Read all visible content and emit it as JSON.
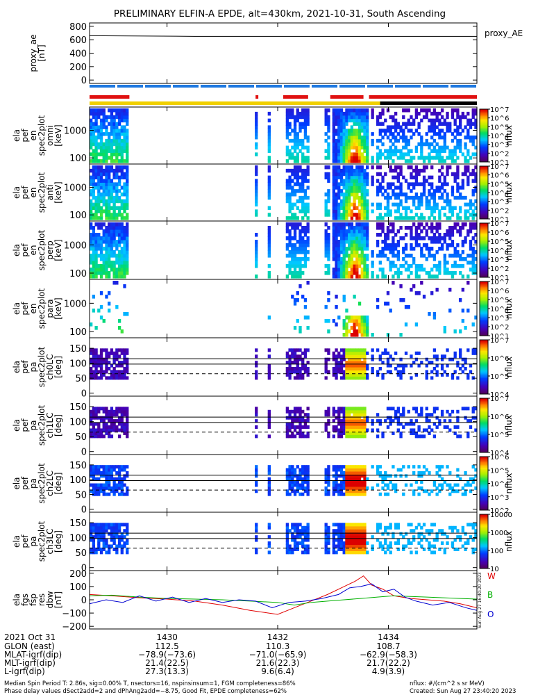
{
  "title": "PRELIMINARY ELFIN-A EPDE, alt=430km, 2021-10-31, South Ascending",
  "colors": {
    "red": "#e01010",
    "yellow": "#f0d000",
    "blue": "#1e78e0",
    "black": "#000000",
    "w_line": "#e00000",
    "b_line": "#00b000",
    "o_line": "#0000d0"
  },
  "chart_data": [
    {
      "id": "proxy_ae",
      "type": "line",
      "ylabel_lines": [
        "proxy_ae",
        "[nT]"
      ],
      "right_label": "proxy_AE",
      "ylim": [
        -50,
        850
      ],
      "yticks": [
        {
          "v": 800,
          "t": "800"
        },
        {
          "v": 600,
          "t": "600"
        },
        {
          "v": 400,
          "t": "400"
        },
        {
          "v": 200,
          "t": "200"
        },
        {
          "v": 0,
          "t": "0"
        }
      ],
      "x": [
        1428.6,
        1430.5,
        1435.6
      ],
      "y": [
        660,
        650,
        650
      ]
    },
    {
      "id": "status_bars",
      "type": "bar",
      "bars": [
        {
          "name": "spin",
          "color": "blue",
          "segments": [
            [
              1428.6,
              1435.6
            ]
          ],
          "dashed": true
        },
        {
          "name": "science",
          "color": "red",
          "segments": [
            [
              1428.6,
              1429.32
            ],
            [
              1431.6,
              1431.65
            ],
            [
              1432.1,
              1432.55
            ],
            [
              1432.95,
              1433.55
            ],
            [
              1433.65,
              1435.6
            ]
          ]
        },
        {
          "name": "fgm",
          "color": "yellow",
          "segments": [
            [
              1428.6,
              1433.85
            ]
          ]
        },
        {
          "name": "fgm_black",
          "color": "black",
          "segments": [
            [
              1433.85,
              1435.6
            ]
          ]
        }
      ]
    },
    {
      "id": "omni",
      "type": "heatmap",
      "ylabel_lines": [
        "ela",
        "pef",
        "en",
        "spec2plot",
        "omni",
        "[keV]"
      ],
      "yscale": "log",
      "ylim": [
        60,
        7000
      ],
      "yticks": [
        {
          "v": 1000,
          "t": "1000"
        },
        {
          "v": 100,
          "t": "100"
        }
      ],
      "zlabel": "nflux",
      "cbar_ticks": [
        {
          "v": 0,
          "t": "10^1"
        },
        {
          "v": 1,
          "t": "10^2"
        },
        {
          "v": 2,
          "t": "10^3"
        },
        {
          "v": 3,
          "t": "10^4"
        },
        {
          "v": 4,
          "t": "10^5"
        },
        {
          "v": 5,
          "t": "10^6"
        },
        {
          "v": 6,
          "t": "10^7"
        }
      ]
    },
    {
      "id": "perp",
      "type": "heatmap",
      "ylabel_lines": [
        "ela",
        "pef",
        "en",
        "spec2plot",
        "anti",
        "[keV]"
      ],
      "yscale": "log",
      "ylim": [
        60,
        7000
      ],
      "yticks": [
        {
          "v": 1000,
          "t": "1000"
        },
        {
          "v": 100,
          "t": "100"
        }
      ],
      "zlabel": "nflux",
      "cbar_ticks": [
        {
          "v": 0,
          "t": "10^1"
        },
        {
          "v": 1,
          "t": "10^2"
        },
        {
          "v": 2,
          "t": "10^3"
        },
        {
          "v": 3,
          "t": "10^4"
        },
        {
          "v": 4,
          "t": "10^5"
        },
        {
          "v": 5,
          "t": "10^6"
        },
        {
          "v": 6,
          "t": "10^7"
        }
      ]
    },
    {
      "id": "anti",
      "type": "heatmap",
      "ylabel_lines": [
        "ela",
        "pef",
        "en",
        "spec2plot",
        "perp",
        "[keV]"
      ],
      "yscale": "log",
      "ylim": [
        60,
        7000
      ],
      "yticks": [
        {
          "v": 1000,
          "t": "1000"
        },
        {
          "v": 100,
          "t": "100"
        }
      ],
      "zlabel": "nflux",
      "cbar_ticks": [
        {
          "v": 0,
          "t": "10^1"
        },
        {
          "v": 1,
          "t": "10^2"
        },
        {
          "v": 2,
          "t": "10^3"
        },
        {
          "v": 3,
          "t": "10^4"
        },
        {
          "v": 4,
          "t": "10^5"
        },
        {
          "v": 5,
          "t": "10^6"
        },
        {
          "v": 6,
          "t": "10^7"
        }
      ]
    },
    {
      "id": "para",
      "type": "heatmap",
      "ylabel_lines": [
        "ela",
        "pef",
        "en",
        "spec2plot",
        "para",
        "[keV]"
      ],
      "yscale": "log",
      "ylim": [
        60,
        7000
      ],
      "yticks": [
        {
          "v": 1000,
          "t": "1000"
        },
        {
          "v": 100,
          "t": "100"
        }
      ],
      "zlabel": "nflux",
      "cbar_ticks": [
        {
          "v": 0,
          "t": "10^1"
        },
        {
          "v": 1,
          "t": "10^2"
        },
        {
          "v": 2,
          "t": "10^3"
        },
        {
          "v": 3,
          "t": "10^4"
        },
        {
          "v": 4,
          "t": "10^5"
        },
        {
          "v": 5,
          "t": "10^6"
        },
        {
          "v": 6,
          "t": "10^7"
        }
      ]
    },
    {
      "id": "ch0",
      "type": "heatmap",
      "ylabel_lines": [
        "ela",
        "pef",
        "pa",
        "spec2plot",
        "ch0LC",
        "[deg]"
      ],
      "yscale": "linear",
      "ylim": [
        -10,
        185
      ],
      "yticks": [
        {
          "v": 150,
          "t": "150"
        },
        {
          "v": 100,
          "t": "100"
        },
        {
          "v": 50,
          "t": "50"
        },
        {
          "v": 0,
          "t": "0"
        }
      ],
      "zlabel": "nflux",
      "hlines": [
        {
          "v": 115,
          "dash": false
        },
        {
          "v": 97,
          "dash": false
        },
        {
          "v": 65,
          "dash": true
        }
      ],
      "cbar_ticks": [
        {
          "v": 0,
          "t": "10^4"
        },
        {
          "v": 1,
          "t": "10^5"
        },
        {
          "v": 2,
          "t": "10^6"
        },
        {
          "v": 3,
          "t": "10^7"
        }
      ]
    },
    {
      "id": "ch1",
      "type": "heatmap",
      "ylabel_lines": [
        "ela",
        "pef",
        "pa",
        "spec2plot",
        "ch1LC",
        "[deg]"
      ],
      "yscale": "linear",
      "ylim": [
        -10,
        185
      ],
      "yticks": [
        {
          "v": 150,
          "t": "150"
        },
        {
          "v": 100,
          "t": "100"
        },
        {
          "v": 50,
          "t": "50"
        },
        {
          "v": 0,
          "t": "0"
        }
      ],
      "zlabel": "nflux",
      "hlines": [
        {
          "v": 115,
          "dash": false
        },
        {
          "v": 97,
          "dash": false
        },
        {
          "v": 65,
          "dash": true
        }
      ],
      "cbar_ticks": [
        {
          "v": 0,
          "t": "10^4"
        },
        {
          "v": 1,
          "t": "10^5"
        },
        {
          "v": 2,
          "t": "10^6"
        },
        {
          "v": 3,
          "t": "10^7"
        }
      ]
    },
    {
      "id": "ch2",
      "type": "heatmap",
      "ylabel_lines": [
        "ela",
        "pef",
        "pa",
        "spec2plot",
        "ch2LC",
        "[deg]"
      ],
      "yscale": "linear",
      "ylim": [
        -10,
        185
      ],
      "yticks": [
        {
          "v": 150,
          "t": "150"
        },
        {
          "v": 100,
          "t": "100"
        },
        {
          "v": 50,
          "t": "50"
        },
        {
          "v": 0,
          "t": "0"
        }
      ],
      "zlabel": "nflux",
      "hlines": [
        {
          "v": 115,
          "dash": false
        },
        {
          "v": 97,
          "dash": false
        },
        {
          "v": 65,
          "dash": true
        }
      ],
      "cbar_ticks": [
        {
          "v": 0,
          "t": "10^2"
        },
        {
          "v": 1,
          "t": "10^3"
        },
        {
          "v": 2,
          "t": "10^4"
        },
        {
          "v": 3,
          "t": "10^5"
        },
        {
          "v": 4,
          "t": "10^6"
        }
      ]
    },
    {
      "id": "ch3",
      "type": "heatmap",
      "ylabel_lines": [
        "ela",
        "pef",
        "pa",
        "spec2plot",
        "ch3LC",
        "[deg]"
      ],
      "yscale": "linear",
      "ylim": [
        -10,
        185
      ],
      "yticks": [
        {
          "v": 150,
          "t": "150"
        },
        {
          "v": 100,
          "t": "100"
        },
        {
          "v": 50,
          "t": "50"
        },
        {
          "v": 0,
          "t": "0"
        }
      ],
      "zlabel": "nflux",
      "hlines": [
        {
          "v": 115,
          "dash": false
        },
        {
          "v": 97,
          "dash": false
        },
        {
          "v": 65,
          "dash": true
        }
      ],
      "cbar_ticks": [
        {
          "v": 0,
          "t": "10"
        },
        {
          "v": 1,
          "t": "100"
        },
        {
          "v": 2,
          "t": "1000"
        },
        {
          "v": 3,
          "t": "10000"
        }
      ]
    },
    {
      "id": "fgs",
      "type": "line",
      "ylabel_lines": [
        "ela",
        "fgs",
        "fsp",
        "res",
        "dbw",
        "[nT]"
      ],
      "ylim": [
        -220,
        220
      ],
      "yticks": [
        {
          "v": 200,
          "t": "200"
        },
        {
          "v": 100,
          "t": "100"
        },
        {
          "v": 0,
          "t": "0"
        },
        {
          "v": -100,
          "t": "−100"
        },
        {
          "v": -200,
          "t": "−200"
        }
      ],
      "legend": [
        {
          "name": "W",
          "color": "w_line"
        },
        {
          "name": "B",
          "color": "b_line"
        },
        {
          "name": "O",
          "color": "o_line"
        }
      ],
      "series": [
        {
          "name": "W",
          "color": "w_line",
          "x": [
            1428.6,
            1429.0,
            1429.5,
            1430.0,
            1430.5,
            1431.0,
            1431.5,
            1432.0,
            1432.3,
            1432.6,
            1432.9,
            1433.2,
            1433.4,
            1433.55,
            1433.7,
            1433.9,
            1434.1,
            1434.4,
            1434.7,
            1435.0,
            1435.3,
            1435.6
          ],
          "y": [
            40,
            30,
            15,
            5,
            -10,
            -40,
            -80,
            -110,
            -60,
            -10,
            40,
            100,
            140,
            180,
            110,
            80,
            30,
            10,
            0,
            -10,
            -30,
            -60
          ]
        },
        {
          "name": "B",
          "color": "b_line",
          "x": [
            1428.6,
            1429.0,
            1429.5,
            1430.0,
            1430.5,
            1431.0,
            1431.5,
            1432.0,
            1432.3,
            1432.6,
            1432.9,
            1433.2,
            1433.5,
            1433.8,
            1434.1,
            1434.4,
            1434.7,
            1435.0,
            1435.3,
            1435.6
          ],
          "y": [
            30,
            35,
            20,
            10,
            5,
            0,
            -10,
            -20,
            -40,
            -20,
            -10,
            0,
            10,
            20,
            30,
            25,
            20,
            15,
            10,
            5
          ]
        },
        {
          "name": "O",
          "color": "o_line",
          "x": [
            1428.6,
            1428.9,
            1429.2,
            1429.5,
            1429.8,
            1430.1,
            1430.4,
            1430.7,
            1431.0,
            1431.3,
            1431.6,
            1431.9,
            1432.2,
            1432.5,
            1432.8,
            1433.1,
            1433.3,
            1433.5,
            1433.7,
            1433.9,
            1434.1,
            1434.3,
            1434.5,
            1434.8,
            1435.1,
            1435.4,
            1435.6
          ],
          "y": [
            -30,
            0,
            -20,
            30,
            -10,
            20,
            -20,
            10,
            -20,
            0,
            -10,
            -60,
            -20,
            -10,
            10,
            40,
            90,
            100,
            120,
            60,
            80,
            20,
            -10,
            -40,
            -20,
            -60,
            -80
          ]
        }
      ]
    }
  ],
  "x_axis": {
    "xlim": [
      1428.6,
      1435.6
    ],
    "ticks": [
      {
        "v": 1430,
        "t": "1430"
      },
      {
        "v": 1432,
        "t": "1432"
      },
      {
        "v": 1434,
        "t": "1434"
      }
    ]
  },
  "footer": {
    "row_labels": [
      "2021 Oct 31",
      "GLON (east)",
      "MLAT-igrf(dip)",
      "MLT-igrf(dip)",
      "L-igrf(dip)"
    ],
    "col1": [
      "1430",
      "112.5",
      "−78.9(−73.6)",
      "21.4(22.5)",
      "27.3(13.3)"
    ],
    "col2": [
      "1432",
      "110.3",
      "−71.0(−65.9)",
      "21.6(22.3)",
      "9.6(6.4)"
    ],
    "col3": [
      "1434",
      "108.7",
      "−62.9(−58.3)",
      "21.7(22.2)",
      "4.9(3.9)"
    ],
    "note1": "Median Spin Period T: 2.86s, sig=0.00% T, nsectors=16, nspinsinsum=1, FGM completeness=86%",
    "note2": "Phase delay values dSect2add=2 and dPhAng2add=−8.75, Good Fit, EPDE completeness=62%",
    "nflux_units": "nflux: #/(cm^2 s sr MeV)",
    "created": "Created: Sun Aug 27 23:40:20 2023",
    "side_stamp": "Sun Aug 27 16:40:20 2023"
  }
}
